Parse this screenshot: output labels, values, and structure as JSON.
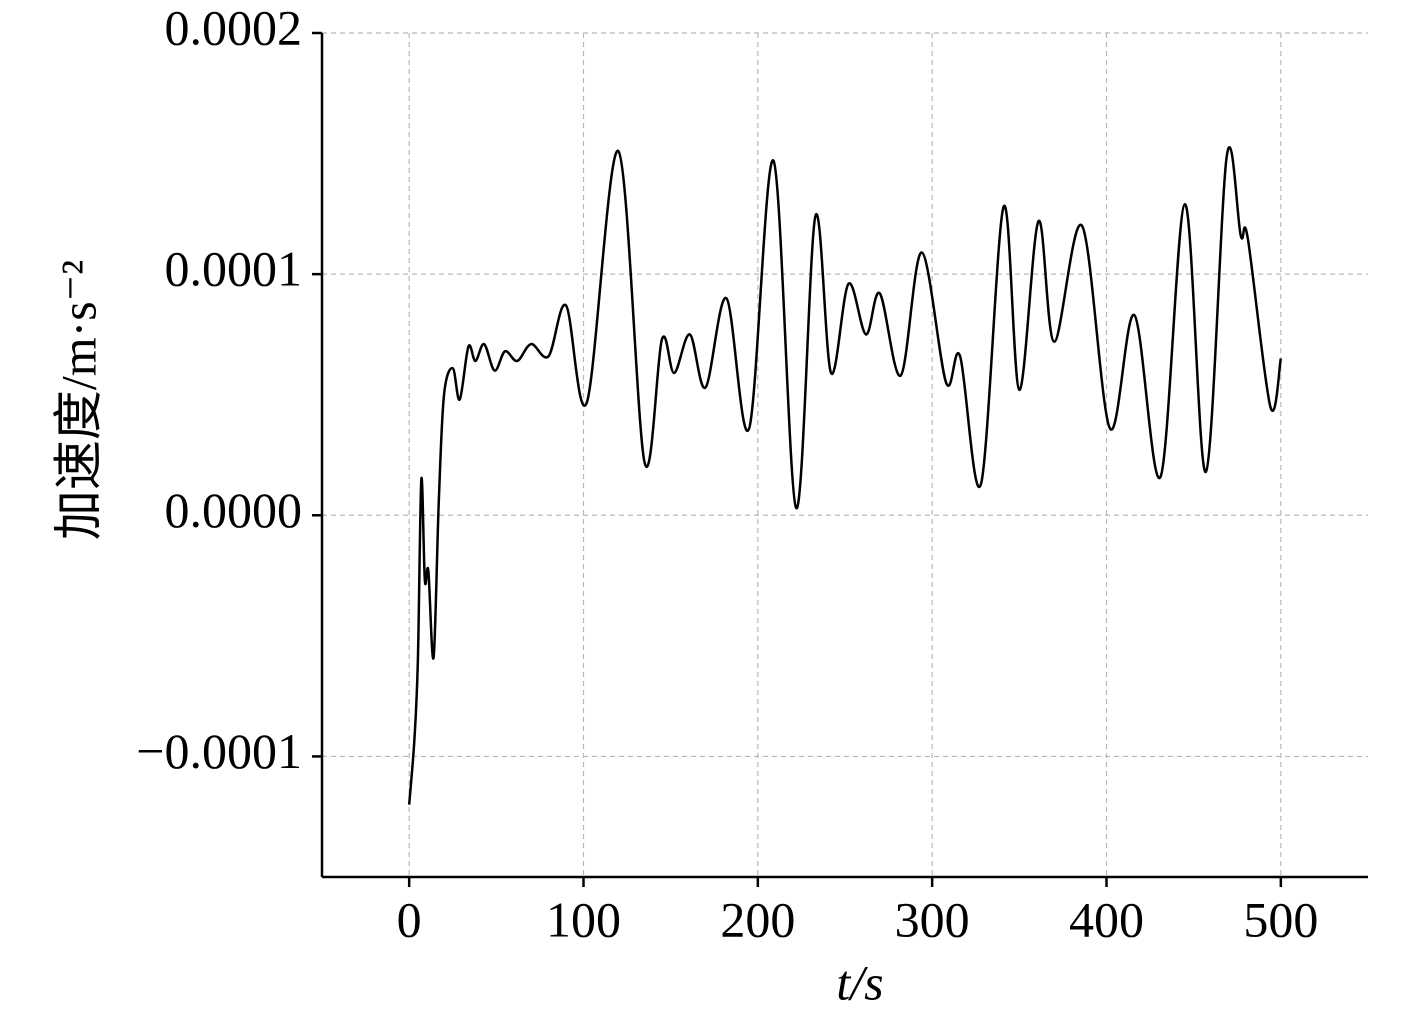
{
  "chart_data": {
    "type": "line",
    "xlabel": "t/s",
    "ylabel": "加速度/m·s⁻²",
    "x": [
      0,
      3,
      5,
      7,
      9,
      11,
      14,
      17,
      20,
      25,
      29,
      34,
      38,
      43,
      49,
      55,
      62,
      70,
      80,
      90,
      102,
      120,
      135,
      145,
      152,
      161,
      170,
      182,
      195,
      209,
      222,
      233,
      242,
      252,
      262,
      270,
      282,
      294,
      308,
      316,
      328,
      341,
      350,
      361,
      370,
      386,
      402,
      416,
      431,
      445,
      457,
      469,
      477,
      481,
      494,
      500
    ],
    "series": [
      {
        "color": "#000000",
        "values": [
          -0.00012,
          -9.3e-05,
          -6e-05,
          1.5e-05,
          -2.7e-05,
          -2.3e-05,
          -5.9e-05,
          6e-06,
          5e-05,
          6.1e-05,
          4.8e-05,
          7e-05,
          6.4e-05,
          7.1e-05,
          6e-05,
          6.8e-05,
          6.4e-05,
          7.1e-05,
          6.6e-05,
          8.7e-05,
          4.7e-05,
          0.000151,
          2.2e-05,
          7.3e-05,
          5.9e-05,
          7.5e-05,
          5.3e-05,
          9e-05,
          3.6e-05,
          0.000147,
          3e-06,
          0.000124,
          5.9e-05,
          9.6e-05,
          7.5e-05,
          9.2e-05,
          5.8e-05,
          0.000109,
          5.5e-05,
          6.6e-05,
          1.3e-05,
          0.000128,
          5.2e-05,
          0.000122,
          7.2e-05,
          0.00012,
          3.6e-05,
          8.3e-05,
          1.6e-05,
          0.000129,
          1.8e-05,
          0.000149,
          0.000116,
          0.000115,
          4.5e-05,
          6.5e-05
        ]
      }
    ],
    "xlim": [
      -50,
      550
    ],
    "xticks": [
      0,
      100,
      200,
      300,
      400,
      500
    ],
    "ylim": [
      -0.00015,
      0.0002
    ],
    "yticks": [
      0.0002,
      0.0001,
      {
        "value": 0,
        "label": "0.0000"
      },
      {
        "value": -0.0001,
        "label": "−0.0001"
      }
    ],
    "grid": true
  }
}
